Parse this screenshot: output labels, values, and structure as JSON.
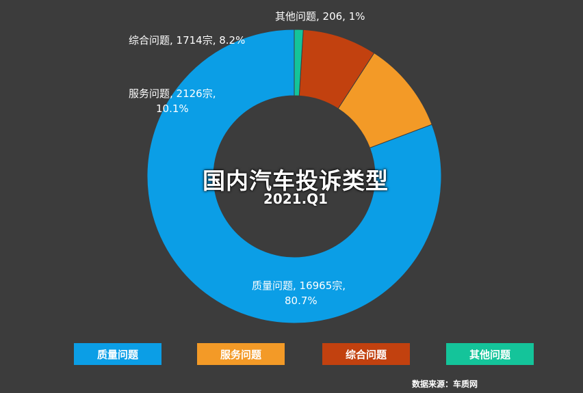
{
  "chart_data": {
    "type": "pie",
    "title": "国内汽车投诉类型",
    "subtitle": "2021.Q1",
    "categories": [
      "质量问题",
      "服务问题",
      "综合问题",
      "其他问题"
    ],
    "values": [
      16965,
      2126,
      1714,
      206
    ],
    "percents": [
      80.7,
      10.1,
      8.2,
      1
    ],
    "colors": [
      "#0b9ee6",
      "#f39a27",
      "#c2410f",
      "#14c49a"
    ],
    "data_labels": [
      [
        "质量问题, 16965宗,",
        "80.7%"
      ],
      [
        "服务问题, 2126宗,",
        "10.1%"
      ],
      [
        "综合问题, 1714宗, 8.2%"
      ],
      [
        "其他问题, 206, 1%"
      ]
    ],
    "legend_position": "bottom",
    "donut": true
  },
  "source": "数据来源：车质网"
}
